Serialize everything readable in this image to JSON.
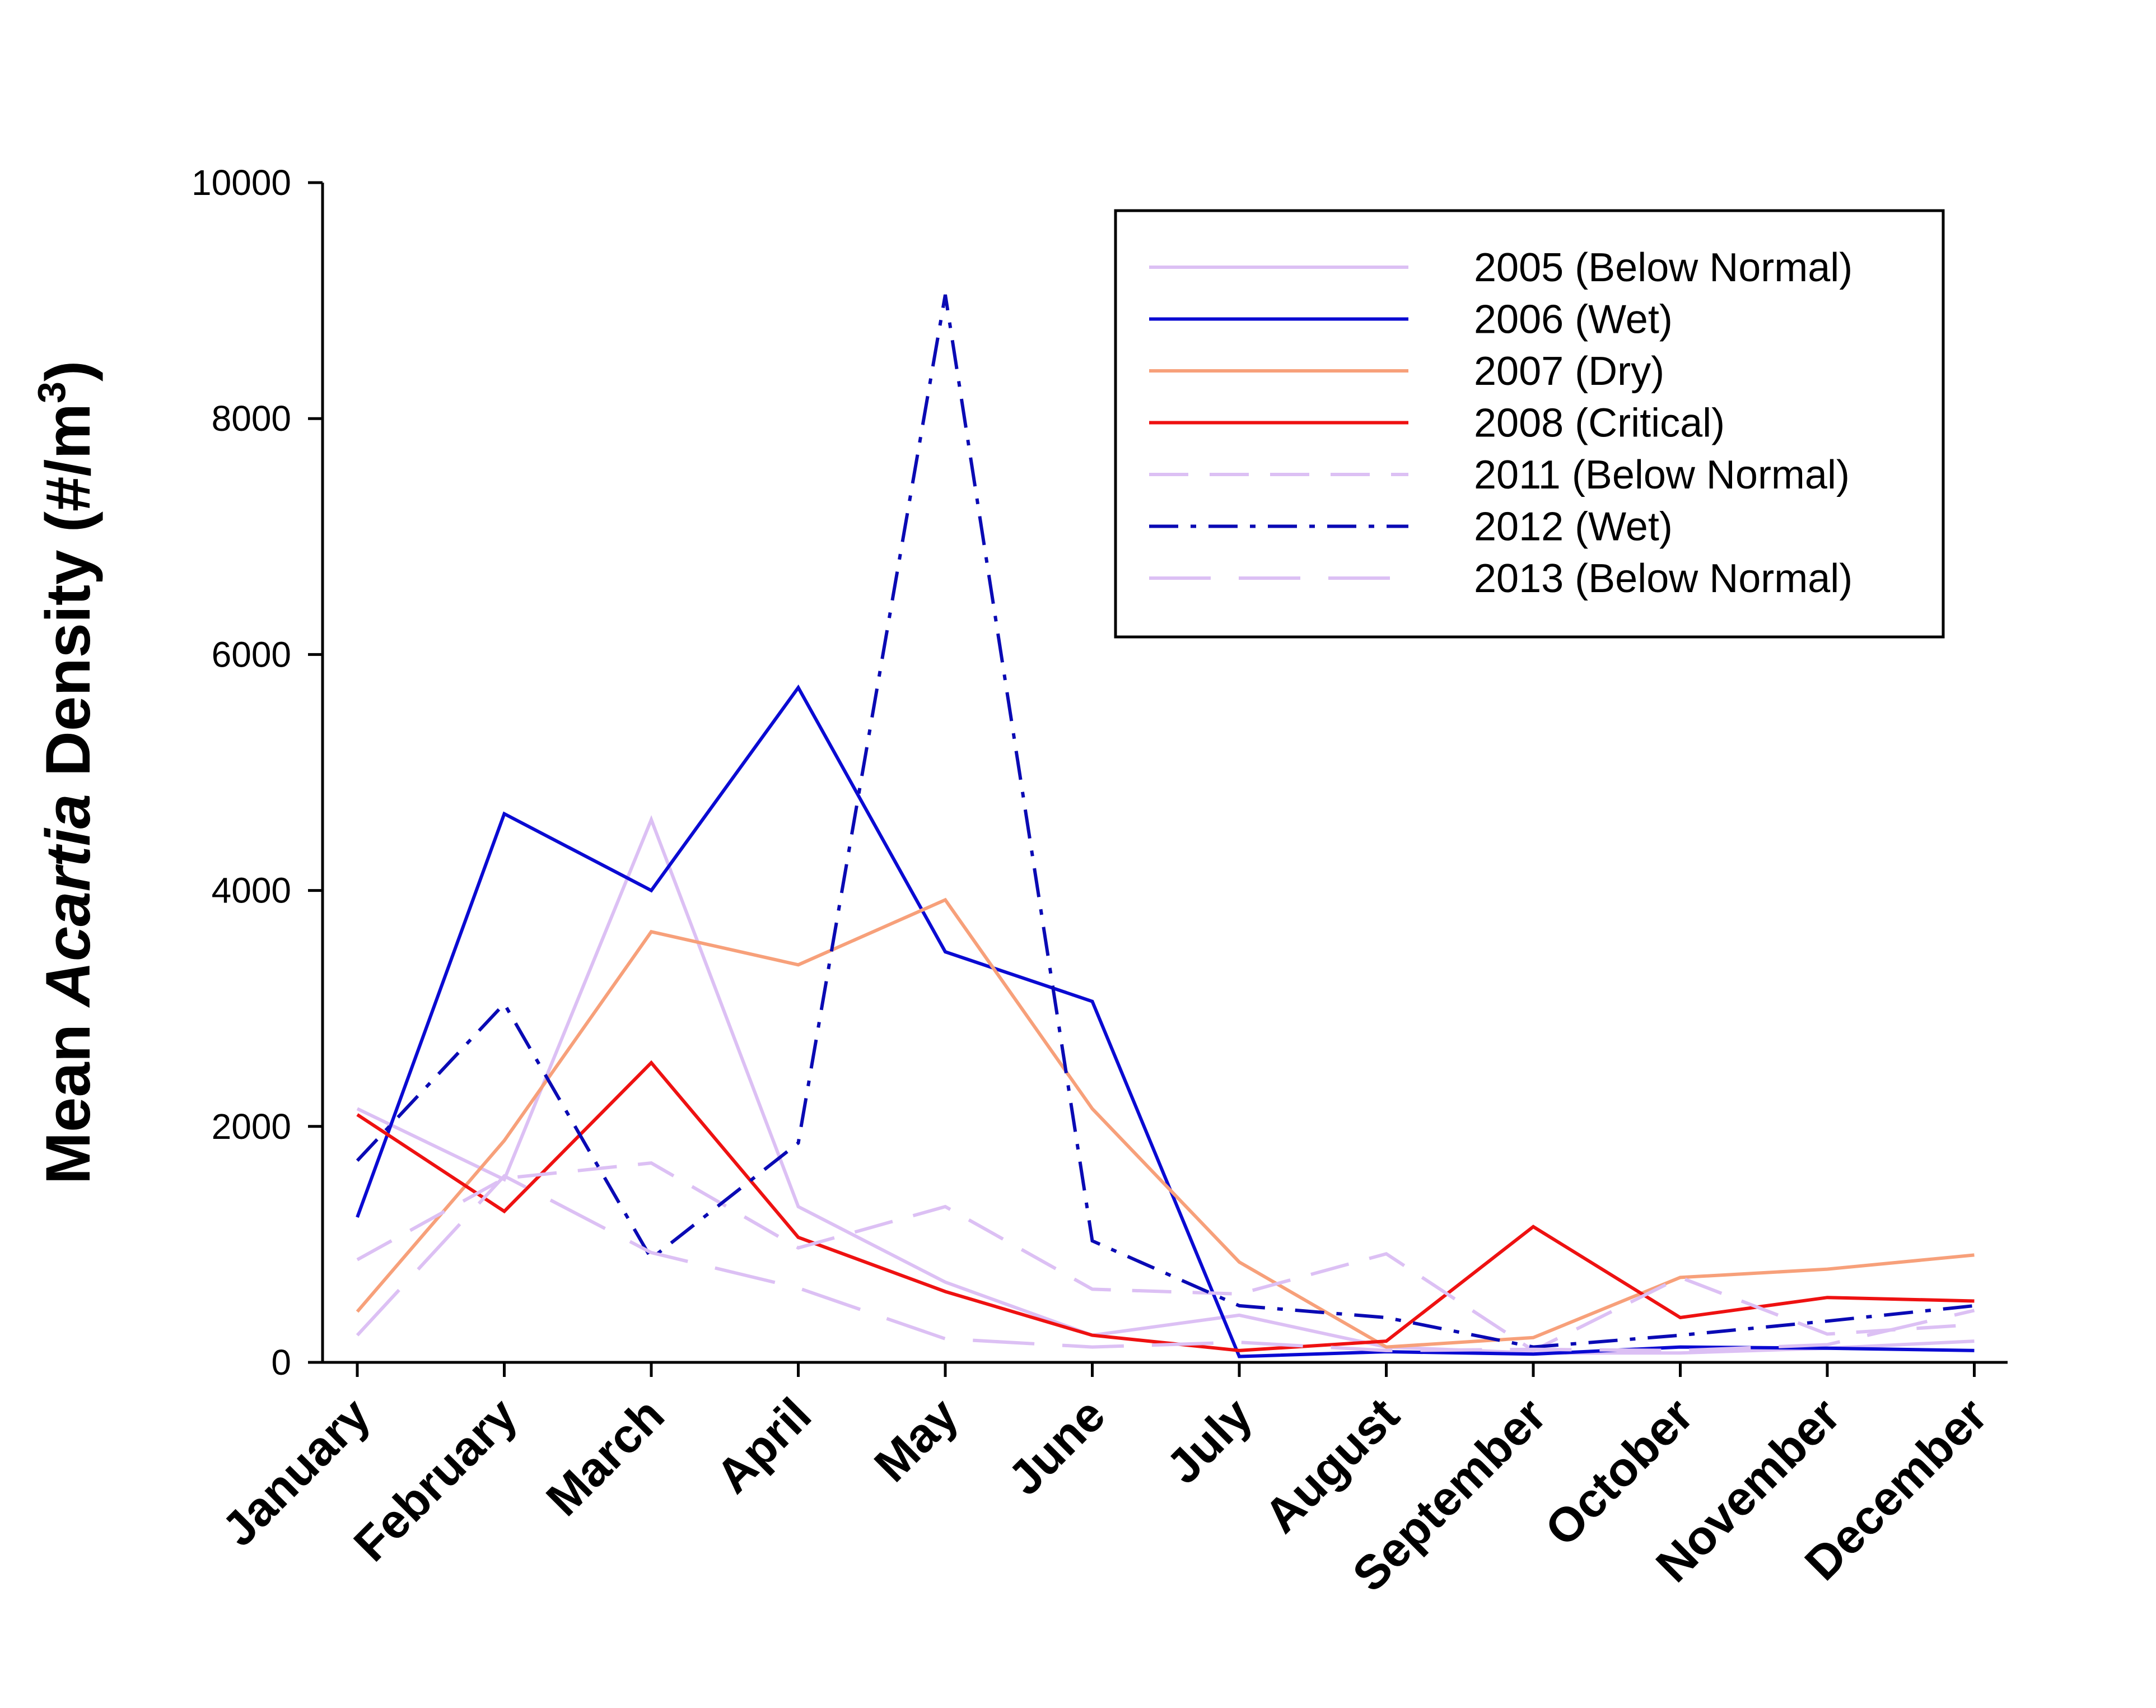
{
  "chart_data": {
    "type": "line",
    "ylabel": {
      "pre": "Mean ",
      "italic": "Acartia",
      "post": " Density (#/m",
      "sup": "3",
      "close": ")"
    },
    "xlabel": "",
    "categories": [
      "January",
      "February",
      "March",
      "April",
      "May",
      "June",
      "July",
      "August",
      "September",
      "October",
      "November",
      "December"
    ],
    "ylim": [
      0,
      10000
    ],
    "yticks": [
      0,
      2000,
      4000,
      6000,
      8000,
      10000
    ],
    "grid": false,
    "legend_position": "top-right",
    "series": [
      {
        "name": "2005 (Below Normal)",
        "color": "#dcc0f4",
        "dash": "solid",
        "values": [
          2150,
          1550,
          4600,
          1320,
          680,
          230,
          400,
          130,
          80,
          80,
          120,
          180
        ]
      },
      {
        "name": "2006 (Wet)",
        "color": "#0a0ad2",
        "dash": "solid",
        "values": [
          1230,
          4650,
          4000,
          5720,
          3480,
          3060,
          50,
          90,
          70,
          130,
          120,
          100
        ]
      },
      {
        "name": "2007 (Dry)",
        "color": "#f7a07a",
        "dash": "solid",
        "values": [
          430,
          1880,
          3650,
          3370,
          3920,
          2150,
          850,
          130,
          210,
          720,
          790,
          910
        ]
      },
      {
        "name": "2008 (Critical)",
        "color": "#ee1111",
        "dash": "solid",
        "values": [
          2100,
          1280,
          2540,
          1060,
          600,
          230,
          100,
          180,
          1150,
          380,
          550,
          520
        ]
      },
      {
        "name": "2011 (Below Normal)",
        "color": "#dcc0f4",
        "dash": "dash",
        "values": [
          870,
          1560,
          1690,
          970,
          1320,
          620,
          580,
          920,
          100,
          720,
          240,
          320
        ]
      },
      {
        "name": "2012 (Wet)",
        "color": "#0a0ab4",
        "dash": "dashdot",
        "values": [
          1710,
          3040,
          880,
          1860,
          9050,
          1030,
          480,
          380,
          130,
          230,
          350,
          480
        ]
      },
      {
        "name": "2013 (Below Normal)",
        "color": "#dcc0f4",
        "dash": "longdash",
        "values": [
          230,
          1580,
          930,
          630,
          200,
          130,
          170,
          100,
          110,
          100,
          150,
          440
        ]
      }
    ]
  }
}
